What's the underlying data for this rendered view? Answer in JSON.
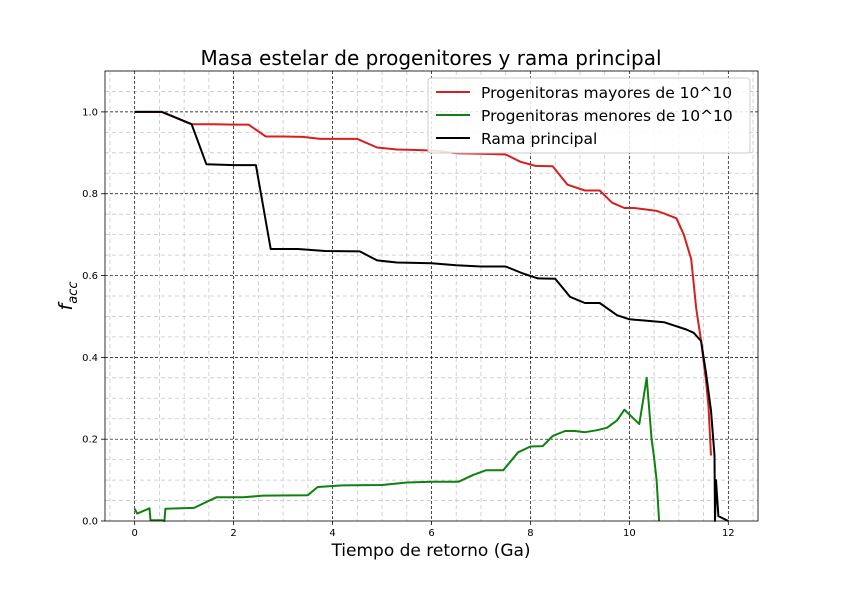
{
  "chart_data": {
    "type": "line",
    "title": "Masa estelar de progenitores y rama principal",
    "xlabel": "Tiempo de retorno (Ga)",
    "ylabel_main": "f",
    "ylabel_sub": "acc",
    "xlim": [
      -0.6,
      12.6
    ],
    "ylim": [
      0,
      1.1
    ],
    "xticks": [
      0,
      2,
      4,
      6,
      8,
      10,
      12
    ],
    "yticks": [
      0.0,
      0.2,
      0.4,
      0.6,
      0.8,
      1.0
    ],
    "xtick_labels": [
      "0",
      "2",
      "4",
      "6",
      "8",
      "10",
      "12"
    ],
    "ytick_labels": [
      "0.0",
      "0.2",
      "0.4",
      "0.6",
      "0.8",
      "1.0"
    ],
    "grid": "major dashed black, minor dashed gray",
    "legend_position": "top-right",
    "series": [
      {
        "name": "Progenitoras mayores de 10^10",
        "color": "#d62020",
        "x": [
          0,
          0.55,
          1.15,
          1.6,
          2,
          2.3,
          2.65,
          3,
          3.4,
          3.75,
          4.1,
          4.5,
          4.9,
          5.3,
          5.7,
          6.1,
          6.5,
          6.9,
          7.2,
          7.5,
          7.8,
          8.1,
          8.45,
          8.75,
          9.1,
          9.4,
          9.65,
          9.9,
          10.1,
          10.3,
          10.55,
          10.7,
          10.95,
          11.1,
          11.25,
          11.35,
          11.45,
          11.55,
          11.6,
          11.65
        ],
        "y": [
          1.0,
          1.0,
          0.97,
          0.97,
          0.969,
          0.969,
          0.94,
          0.94,
          0.939,
          0.934,
          0.934,
          0.934,
          0.913,
          0.908,
          0.907,
          0.905,
          0.899,
          0.898,
          0.897,
          0.896,
          0.878,
          0.868,
          0.867,
          0.822,
          0.808,
          0.808,
          0.778,
          0.765,
          0.765,
          0.762,
          0.758,
          0.752,
          0.74,
          0.7,
          0.64,
          0.52,
          0.44,
          0.34,
          0.28,
          0.16
        ]
      },
      {
        "name": "Progenitoras menores de 10^10",
        "color": "#108010",
        "x": [
          0,
          0.05,
          0.3,
          0.32,
          0.55,
          0.6,
          0.62,
          1.2,
          1.65,
          2.2,
          2.6,
          3.5,
          3.7,
          4.2,
          5,
          5.5,
          6,
          6.55,
          6.85,
          7.1,
          7.45,
          7.75,
          8,
          8.25,
          8.45,
          8.7,
          8.9,
          9.1,
          9.35,
          9.55,
          9.75,
          9.9,
          10.2,
          10.35,
          10.45,
          10.5,
          10.55,
          10.6
        ],
        "y": [
          0.03,
          0.018,
          0.031,
          0.002,
          0.002,
          0.0,
          0.03,
          0.032,
          0.058,
          0.058,
          0.062,
          0.063,
          0.083,
          0.087,
          0.088,
          0.094,
          0.096,
          0.096,
          0.113,
          0.124,
          0.124,
          0.168,
          0.182,
          0.183,
          0.208,
          0.22,
          0.22,
          0.217,
          0.222,
          0.228,
          0.246,
          0.272,
          0.237,
          0.35,
          0.2,
          0.155,
          0.1,
          0.0
        ]
      },
      {
        "name": "Rama principal",
        "color": "#000000",
        "x": [
          0,
          0.55,
          1.15,
          1.45,
          2,
          2.45,
          2.75,
          3.3,
          3.85,
          4.55,
          4.9,
          5.3,
          6,
          6.5,
          7,
          7.5,
          7.85,
          8.15,
          8.5,
          8.8,
          9.1,
          9.4,
          9.75,
          10,
          10.3,
          10.7,
          11.15,
          11.3,
          11.45,
          11.55,
          11.65,
          11.72,
          11.73,
          11.75,
          11.8,
          12.0
        ],
        "y": [
          1.0,
          1.0,
          0.97,
          0.872,
          0.87,
          0.87,
          0.665,
          0.665,
          0.66,
          0.659,
          0.637,
          0.632,
          0.63,
          0.625,
          0.622,
          0.622,
          0.605,
          0.593,
          0.592,
          0.548,
          0.533,
          0.533,
          0.503,
          0.493,
          0.49,
          0.486,
          0.468,
          0.46,
          0.44,
          0.36,
          0.27,
          0.16,
          0.0,
          0.1,
          0.012,
          0.0
        ]
      }
    ]
  }
}
